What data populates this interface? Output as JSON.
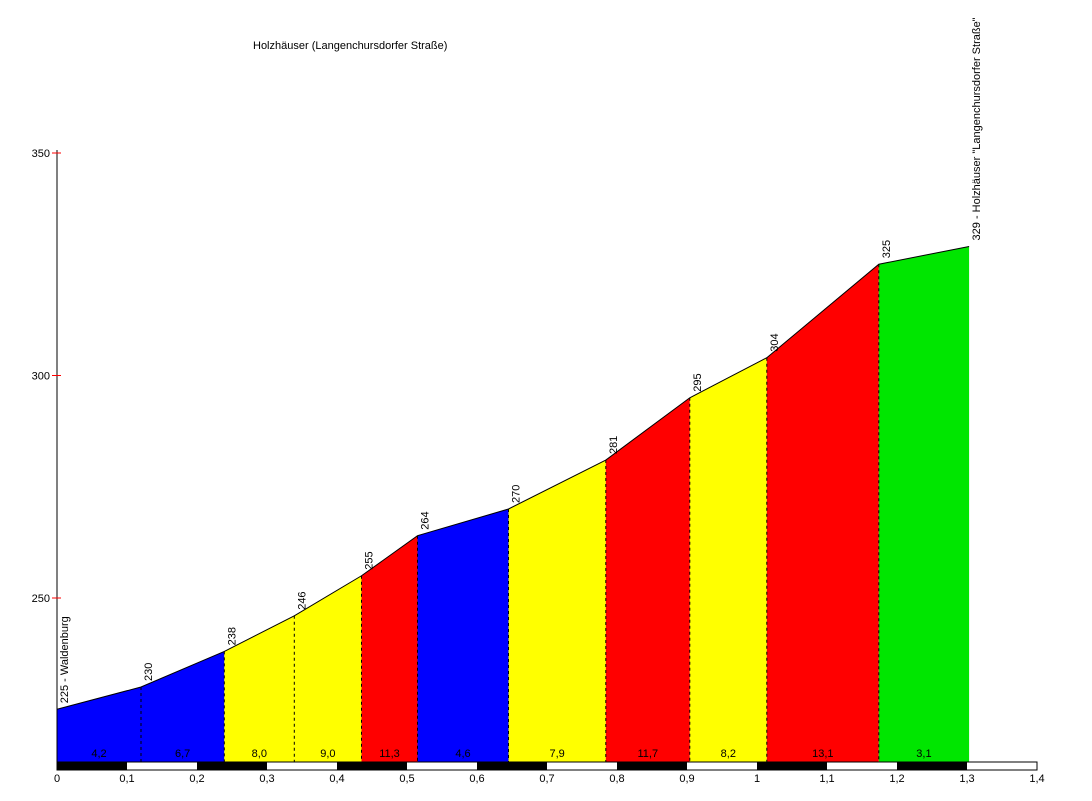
{
  "chart_data": {
    "type": "area",
    "title": "Holzhäuser (Langenchursdorfer Straße)",
    "x_axis": {
      "unit": "km",
      "min": 0,
      "max": 1.4,
      "tick_step": 0.1,
      "tick_labels": [
        "0",
        "0,1",
        "0,2",
        "0,3",
        "0,4",
        "0,5",
        "0,6",
        "0,7",
        "0,8",
        "0,9",
        "1",
        "1,1",
        "1,2",
        "1,3",
        "1,4"
      ]
    },
    "y_axis": {
      "unit": "m",
      "ticks": [
        350,
        300,
        250
      ],
      "tick_color": "#ff0000",
      "axis_color": "#000000"
    },
    "profile_points": [
      {
        "km": 0.0,
        "elevation": 225,
        "label": "225 - Waldenburg"
      },
      {
        "km": 0.12,
        "elevation": 230,
        "label": "230"
      },
      {
        "km": 0.239,
        "elevation": 238,
        "label": "238"
      },
      {
        "km": 0.339,
        "elevation": 246,
        "label": "246"
      },
      {
        "km": 0.435,
        "elevation": 255,
        "label": "255"
      },
      {
        "km": 0.515,
        "elevation": 264,
        "label": "264"
      },
      {
        "km": 0.645,
        "elevation": 270,
        "label": "270"
      },
      {
        "km": 0.784,
        "elevation": 281,
        "label": "281"
      },
      {
        "km": 0.904,
        "elevation": 295,
        "label": "295"
      },
      {
        "km": 1.014,
        "elevation": 304,
        "label": "304"
      },
      {
        "km": 1.174,
        "elevation": 325,
        "label": "325"
      },
      {
        "km": 1.303,
        "elevation": 329,
        "label": "329 - Holzhäuser \"Langenchursdorfer Straße\""
      }
    ],
    "segments": [
      {
        "from_km": 0.0,
        "to_km": 0.12,
        "gradient_label": "4,2",
        "gradient_pct": 4.2,
        "color": "#0000ff"
      },
      {
        "from_km": 0.12,
        "to_km": 0.239,
        "gradient_label": "6,7",
        "gradient_pct": 6.7,
        "color": "#0000ff"
      },
      {
        "from_km": 0.239,
        "to_km": 0.339,
        "gradient_label": "8,0",
        "gradient_pct": 8.0,
        "color": "#ffff00"
      },
      {
        "from_km": 0.339,
        "to_km": 0.435,
        "gradient_label": "9,0",
        "gradient_pct": 9.0,
        "color": "#ffff00"
      },
      {
        "from_km": 0.435,
        "to_km": 0.515,
        "gradient_label": "11,3",
        "gradient_pct": 11.3,
        "color": "#ff0000"
      },
      {
        "from_km": 0.515,
        "to_km": 0.645,
        "gradient_label": "4,6",
        "gradient_pct": 4.6,
        "color": "#0000ff"
      },
      {
        "from_km": 0.645,
        "to_km": 0.784,
        "gradient_label": "7,9",
        "gradient_pct": 7.9,
        "color": "#ffff00"
      },
      {
        "from_km": 0.784,
        "to_km": 0.904,
        "gradient_label": "11,7",
        "gradient_pct": 11.7,
        "color": "#ff0000"
      },
      {
        "from_km": 0.904,
        "to_km": 1.014,
        "gradient_label": "8,2",
        "gradient_pct": 8.2,
        "color": "#ffff00"
      },
      {
        "from_km": 1.014,
        "to_km": 1.174,
        "gradient_label": "13,1",
        "gradient_pct": 13.1,
        "color": "#ff0000"
      },
      {
        "from_km": 1.174,
        "to_km": 1.303,
        "gradient_label": "3,1",
        "gradient_pct": 3.1,
        "color": "#00e600"
      }
    ],
    "scale_bar": {
      "interval_km": 0.1,
      "colors": [
        "#000000",
        "#ffffff"
      ]
    },
    "line_color": "#000000",
    "boundary_line_style": "dashed",
    "background": "#ffffff"
  }
}
